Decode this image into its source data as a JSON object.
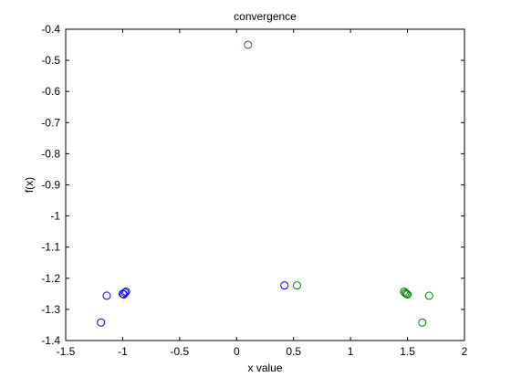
{
  "chart_data": {
    "type": "scatter",
    "title": "convergence",
    "xlabel": "x value",
    "ylabel": "f(x)",
    "xlim": [
      -1.5,
      2
    ],
    "ylim": [
      -1.4,
      -0.4
    ],
    "xticks": [
      -1.5,
      -1,
      -0.5,
      0,
      0.5,
      1,
      1.5,
      2
    ],
    "yticks": [
      -1.4,
      -1.3,
      -1.2,
      -1.1,
      -1,
      -0.9,
      -0.8,
      -0.7,
      -0.6,
      -0.5,
      -0.4
    ],
    "xtick_labels": [
      "-1.5",
      "-1",
      "-0.5",
      "0",
      "0.5",
      "1",
      "1.5",
      "2"
    ],
    "ytick_labels": [
      "-1.4",
      "-1.3",
      "-1.2",
      "-1.1",
      "-1",
      "-0.9",
      "-0.8",
      "-0.7",
      "-0.6",
      "-0.5",
      "-0.4"
    ],
    "grid": false,
    "marker": "circle-open",
    "series": [
      {
        "color": "#0000ff",
        "points": [
          {
            "x": -1.19,
            "y": -1.342
          },
          {
            "x": -1.14,
            "y": -1.256
          },
          {
            "x": -1.0,
            "y": -1.25
          },
          {
            "x": -0.99,
            "y": -1.252
          },
          {
            "x": -0.98,
            "y": -1.246
          },
          {
            "x": -0.97,
            "y": -1.243
          },
          {
            "x": 0.42,
            "y": -1.223
          }
        ]
      },
      {
        "color": "#008000",
        "points": [
          {
            "x": 0.1,
            "y": -0.45
          },
          {
            "x": 0.53,
            "y": -1.223
          },
          {
            "x": 1.47,
            "y": -1.243
          },
          {
            "x": 1.48,
            "y": -1.247
          },
          {
            "x": 1.49,
            "y": -1.25
          },
          {
            "x": 1.5,
            "y": -1.252
          },
          {
            "x": 1.63,
            "y": -1.342
          },
          {
            "x": 1.69,
            "y": -1.256
          }
        ]
      }
    ]
  }
}
